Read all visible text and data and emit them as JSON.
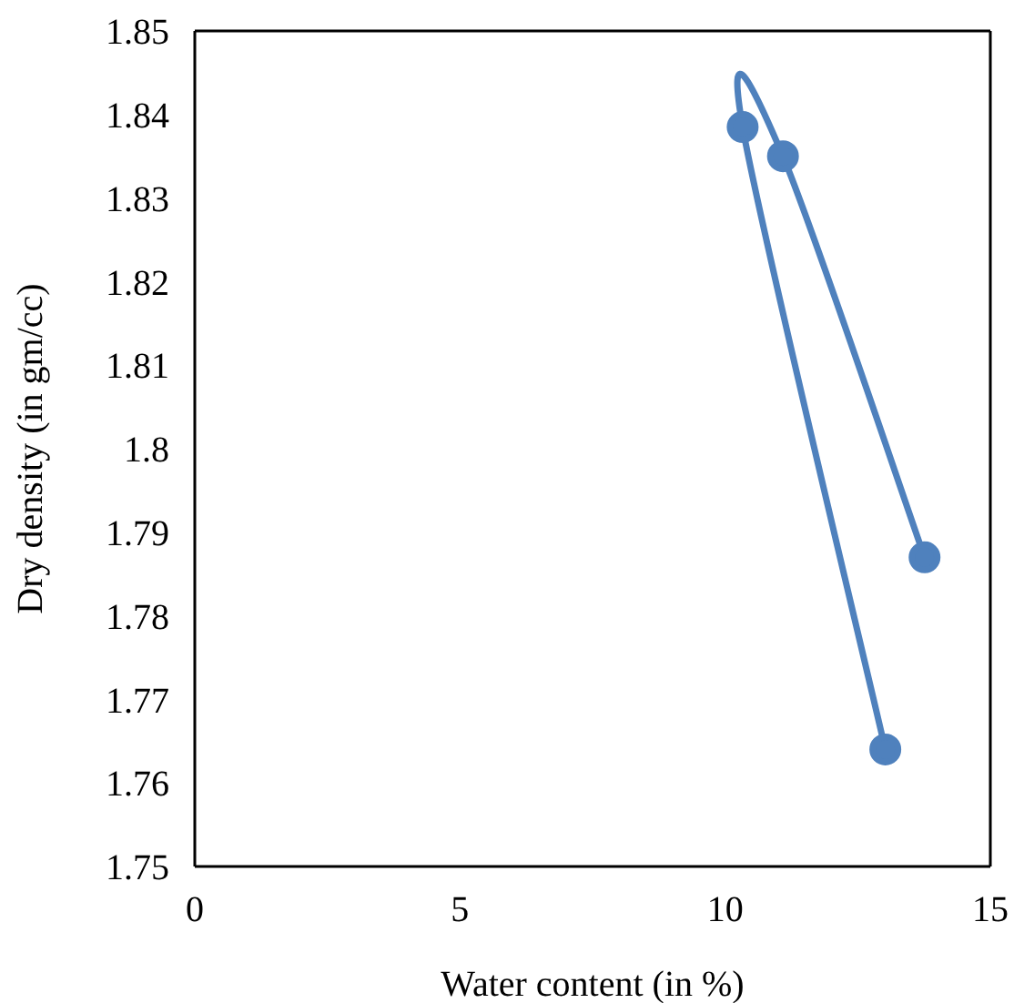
{
  "chart_data": {
    "type": "line",
    "xlabel": "Water content (in %)",
    "ylabel": "Dry density (in gm/cc)",
    "x": [
      13.02,
      10.33,
      11.09,
      13.76
    ],
    "series": [
      {
        "color": "#4f81bd",
        "values": [
          1.764,
          1.8385,
          1.835,
          1.787
        ]
      }
    ],
    "xlim": [
      0,
      15
    ],
    "xticks": [
      0,
      5,
      10,
      15
    ],
    "ylim": [
      1.75,
      1.85
    ],
    "yticks": [
      1.75,
      1.76,
      1.77,
      1.78,
      1.79,
      1.8,
      1.81,
      1.82,
      1.83,
      1.84,
      1.85
    ],
    "grid": false,
    "marker": "circle",
    "line_style": "solid"
  }
}
